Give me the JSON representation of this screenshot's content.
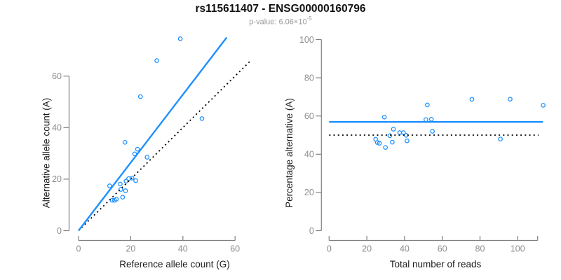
{
  "header": {
    "title": "rs115611407 - ENSG00000160796",
    "subtitle_base": "p-value: 6.06×10",
    "subtitle_exponent": "-5",
    "p_value": "6.06e-5"
  },
  "colors": {
    "accent_blue": "#1E90FF",
    "reference_black": "#000000",
    "axis_gray": "#808080",
    "tick_label_gray": "#8c8c8c",
    "axis_title_color": "#1a1a1a"
  },
  "chart_data": [
    {
      "type": "scatter",
      "title": "rs115611407 - ENSG00000160796",
      "xlabel": "Reference allele count (G)",
      "ylabel": "Alternative allele count (A)",
      "xlim": [
        0,
        66.3
      ],
      "ylim": [
        0,
        75
      ],
      "xticks": [
        0,
        20,
        40,
        60
      ],
      "yticks": [
        0,
        20,
        40,
        60
      ],
      "grid": false,
      "legend": "none",
      "points": [
        [
          39,
          74.5
        ],
        [
          30,
          66
        ],
        [
          23.7,
          52
        ],
        [
          47.3,
          43.5
        ],
        [
          17.8,
          34.3
        ],
        [
          22.6,
          31.6
        ],
        [
          21.5,
          29.8
        ],
        [
          26.3,
          28.5
        ],
        [
          18.2,
          19.2
        ],
        [
          19.2,
          20.2
        ],
        [
          20.5,
          20.4
        ],
        [
          21.9,
          19.4
        ],
        [
          16.0,
          18.1
        ],
        [
          11.9,
          17.4
        ],
        [
          16.2,
          16.0
        ],
        [
          18.0,
          15.5
        ],
        [
          16.9,
          13.0
        ],
        [
          12.9,
          11.8
        ],
        [
          13.8,
          11.8
        ],
        [
          14.5,
          12.2
        ]
      ],
      "fit_line": {
        "name": "fitted-proportion-line",
        "style": "solid",
        "color": "#1E90FF",
        "points_data": [
          [
            0,
            0
          ],
          [
            56.8,
            75
          ]
        ]
      },
      "reference_line": {
        "name": "identity-line",
        "style": "dotted",
        "color": "#000000",
        "points_data": [
          [
            0,
            0
          ],
          [
            66.3,
            66.3
          ]
        ]
      }
    },
    {
      "type": "scatter",
      "xlabel": "Total number of reads",
      "ylabel": "Percentage alternative (A)",
      "xlim": [
        0,
        113.5
      ],
      "ylim": [
        0,
        100
      ],
      "xticks": [
        0,
        20,
        40,
        60,
        80,
        100
      ],
      "yticks": [
        0,
        20,
        40,
        60,
        80,
        100
      ],
      "grid": false,
      "legend": "none",
      "points": [
        [
          113.5,
          65.6
        ],
        [
          96.0,
          68.8
        ],
        [
          75.7,
          68.7
        ],
        [
          90.8,
          47.9
        ],
        [
          52.1,
          65.8
        ],
        [
          54.2,
          58.3
        ],
        [
          51.3,
          58.1
        ],
        [
          54.8,
          52.0
        ],
        [
          37.4,
          51.3
        ],
        [
          39.4,
          51.3
        ],
        [
          40.9,
          49.9
        ],
        [
          41.3,
          47.0
        ],
        [
          34.1,
          53.1
        ],
        [
          29.3,
          59.4
        ],
        [
          32.2,
          49.7
        ],
        [
          33.5,
          46.3
        ],
        [
          29.9,
          43.5
        ],
        [
          24.7,
          47.8
        ],
        [
          25.6,
          46.1
        ],
        [
          26.7,
          45.7
        ]
      ],
      "fit_line": {
        "name": "fitted-percentage-line",
        "style": "solid",
        "color": "#1E90FF",
        "points_data": [
          [
            0,
            56.9
          ],
          [
            113.4,
            56.9
          ]
        ]
      },
      "reference_line": {
        "name": "fifty-percent-line",
        "style": "dotted",
        "color": "#000000",
        "points_data": [
          [
            0,
            50
          ],
          [
            111,
            50
          ]
        ]
      }
    }
  ]
}
